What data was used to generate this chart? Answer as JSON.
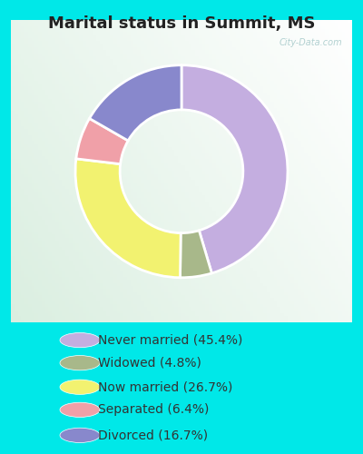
{
  "title": "Marital status in Summit, MS",
  "slices": [
    45.4,
    4.8,
    26.7,
    6.4,
    16.7
  ],
  "labels": [
    "Never married (45.4%)",
    "Widowed (4.8%)",
    "Now married (26.7%)",
    "Separated (6.4%)",
    "Divorced (16.7%)"
  ],
  "colors": [
    "#c4aee0",
    "#a8b88a",
    "#f2f270",
    "#f0a0a8",
    "#8888cc"
  ],
  "legend_colors": [
    "#c4aee0",
    "#a8b88a",
    "#f2f270",
    "#f0a0a8",
    "#8888cc"
  ],
  "background_cyan": "#00e8e8",
  "title_fontsize": 13,
  "title_color": "#222222",
  "watermark": "City-Data.com",
  "donut_width": 0.42,
  "legend_fontsize": 10,
  "legend_text_color": "#333333"
}
